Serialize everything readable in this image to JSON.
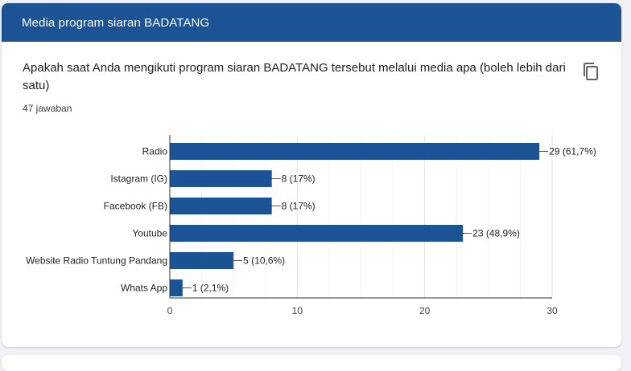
{
  "header": {
    "title": "Media program siaran BADATANG"
  },
  "question": {
    "text": "Apakah saat Anda mengikuti program siaran BADATANG tersebut melalui media apa (boleh lebih dari satu)",
    "responses": "47 jawaban",
    "copy_icon": "copy-icon"
  },
  "colors": {
    "header": "#1c5394",
    "bar": "#1c5394"
  },
  "chart_data": {
    "type": "bar",
    "orientation": "horizontal",
    "categories": [
      "Radio",
      "Istagram (IG)",
      "Facebook (FB)",
      "Youtube",
      "Website Radio Tuntung Pandang",
      "Whats App"
    ],
    "values": [
      29,
      8,
      8,
      23,
      5,
      1
    ],
    "data_labels": [
      "29 (61,7%)",
      "8 (17%)",
      "8 (17%)",
      "23 (48,9%)",
      "5 (10,6%)",
      "1 (2,1%)"
    ],
    "x_ticks": [
      "0",
      "10",
      "20",
      "30"
    ],
    "xlim": [
      0,
      30
    ],
    "grid": true
  }
}
